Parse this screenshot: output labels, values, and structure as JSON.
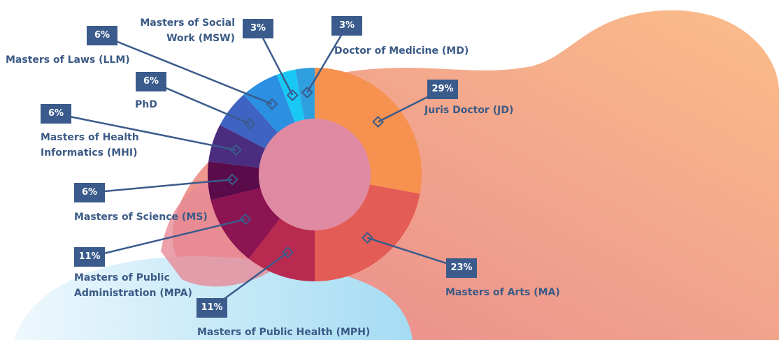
{
  "chart_data": {
    "type": "donut",
    "categories": [
      "Juris Doctor (JD)",
      "Masters of Arts (MA)",
      "Masters of Public Health (MPH)",
      "Masters of Public Administration (MPA)",
      "Masters of Science (MS)",
      "Masters of Health Informatics (MHI)",
      "PhD",
      "Masters of Laws (LLM)",
      "Masters of Social Work (MSW)",
      "Doctor of Medicine (MD)"
    ],
    "values": [
      29,
      23,
      11,
      11,
      6,
      6,
      6,
      6,
      3,
      3
    ],
    "value_labels": [
      "29%",
      "23%",
      "11%",
      "11%",
      "6%",
      "6%",
      "6%",
      "6%",
      "3%",
      "3%"
    ],
    "colors": [
      "#f7914f",
      "#e35c55",
      "#b82a4f",
      "#8c1452",
      "#5a0b4a",
      "#4b2d80",
      "#3f63c2",
      "#2b8fe2",
      "#1ac8f5",
      "#2f9fe0"
    ]
  }
}
